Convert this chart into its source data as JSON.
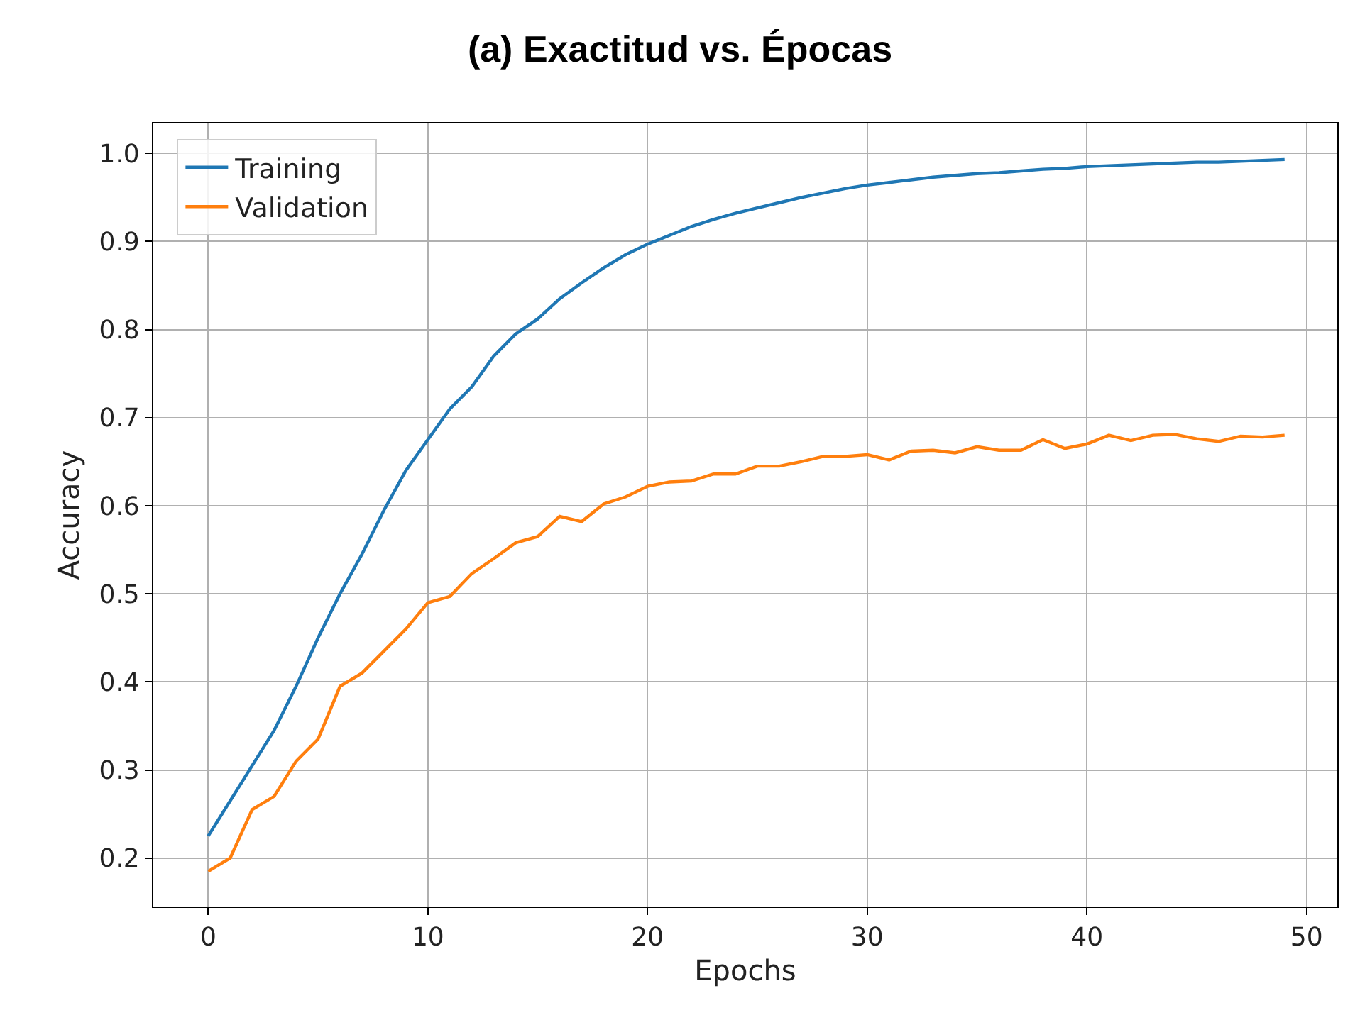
{
  "chart_data": {
    "type": "line",
    "title": "(a) Exactitud vs. Épocas",
    "xlabel": "Epochs",
    "ylabel": "Accuracy",
    "x": [
      0,
      1,
      2,
      3,
      4,
      5,
      6,
      7,
      8,
      9,
      10,
      11,
      12,
      13,
      14,
      15,
      16,
      17,
      18,
      19,
      20,
      21,
      22,
      23,
      24,
      25,
      26,
      27,
      28,
      29,
      30,
      31,
      32,
      33,
      34,
      35,
      36,
      37,
      38,
      39,
      40,
      41,
      42,
      43,
      44,
      45,
      46,
      47,
      48,
      49
    ],
    "series": [
      {
        "name": "Training",
        "color": "#1f77b4",
        "values": [
          0.225,
          0.265,
          0.305,
          0.345,
          0.395,
          0.45,
          0.5,
          0.545,
          0.595,
          0.64,
          0.675,
          0.71,
          0.735,
          0.77,
          0.795,
          0.812,
          0.835,
          0.853,
          0.87,
          0.885,
          0.897,
          0.907,
          0.917,
          0.925,
          0.932,
          0.938,
          0.944,
          0.95,
          0.955,
          0.96,
          0.964,
          0.967,
          0.97,
          0.973,
          0.975,
          0.977,
          0.978,
          0.98,
          0.982,
          0.983,
          0.985,
          0.986,
          0.987,
          0.988,
          0.989,
          0.99,
          0.99,
          0.991,
          0.992,
          0.993
        ]
      },
      {
        "name": "Validation",
        "color": "#ff7f0e",
        "values": [
          0.185,
          0.2,
          0.255,
          0.27,
          0.31,
          0.335,
          0.395,
          0.41,
          0.435,
          0.46,
          0.49,
          0.497,
          0.523,
          0.54,
          0.558,
          0.565,
          0.588,
          0.582,
          0.602,
          0.61,
          0.622,
          0.627,
          0.628,
          0.636,
          0.636,
          0.645,
          0.645,
          0.65,
          0.656,
          0.656,
          0.658,
          0.652,
          0.662,
          0.663,
          0.66,
          0.667,
          0.663,
          0.663,
          0.675,
          0.665,
          0.67,
          0.68,
          0.674,
          0.68,
          0.681,
          0.676,
          0.673,
          0.679,
          0.678,
          0.68
        ]
      }
    ],
    "xlim": [
      -2.5,
      51.4
    ],
    "ylim": [
      0.145,
      1.034
    ],
    "xticks": [
      0,
      10,
      20,
      30,
      40,
      50
    ],
    "yticks": [
      0.2,
      0.3,
      0.4,
      0.5,
      0.6,
      0.7,
      0.8,
      0.9,
      {
        "value": 1,
        "label": "1.0"
      }
    ],
    "grid": true,
    "legend": "top left",
    "marker": "none",
    "line_style": "solid"
  }
}
